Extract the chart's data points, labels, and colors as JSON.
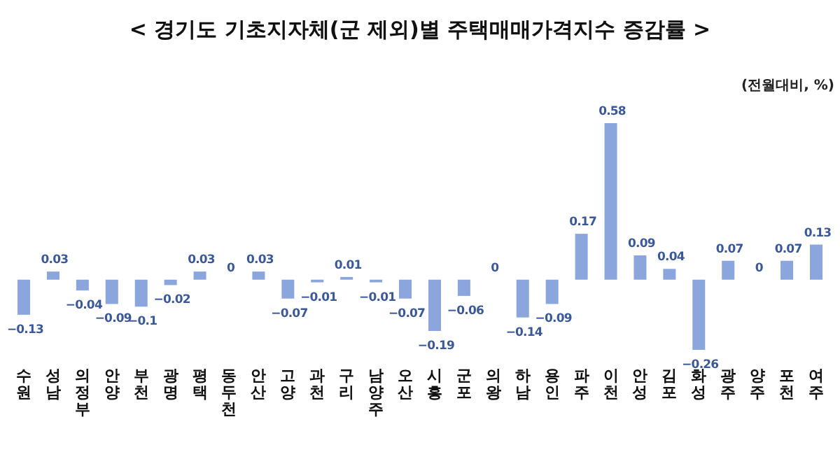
{
  "chart_data": {
    "type": "bar",
    "title": "< 경기도 기초지자체(군 제외)별 주택매매가격지수 증감률 >",
    "annotations": [
      "(전월대비, %)"
    ],
    "categories": [
      "수원",
      "성남",
      "의정부",
      "안양",
      "부천",
      "광명",
      "평택",
      "동두천",
      "안산",
      "고양",
      "과천",
      "구리",
      "남양주",
      "오산",
      "시흥",
      "군포",
      "의왕",
      "하남",
      "용인",
      "파주",
      "이천",
      "안성",
      "김포",
      "화성",
      "광주",
      "양주",
      "포천",
      "여주"
    ],
    "values": [
      -0.13,
      0.03,
      -0.04,
      -0.09,
      -0.1,
      -0.02,
      0.03,
      0,
      0.03,
      -0.07,
      -0.01,
      0.01,
      -0.01,
      -0.07,
      -0.19,
      -0.06,
      0,
      -0.14,
      -0.09,
      0.17,
      0.58,
      0.09,
      0.04,
      -0.26,
      0.07,
      0,
      0.07,
      0.13
    ],
    "color": "#8aa6dc",
    "data_labels": true
  }
}
